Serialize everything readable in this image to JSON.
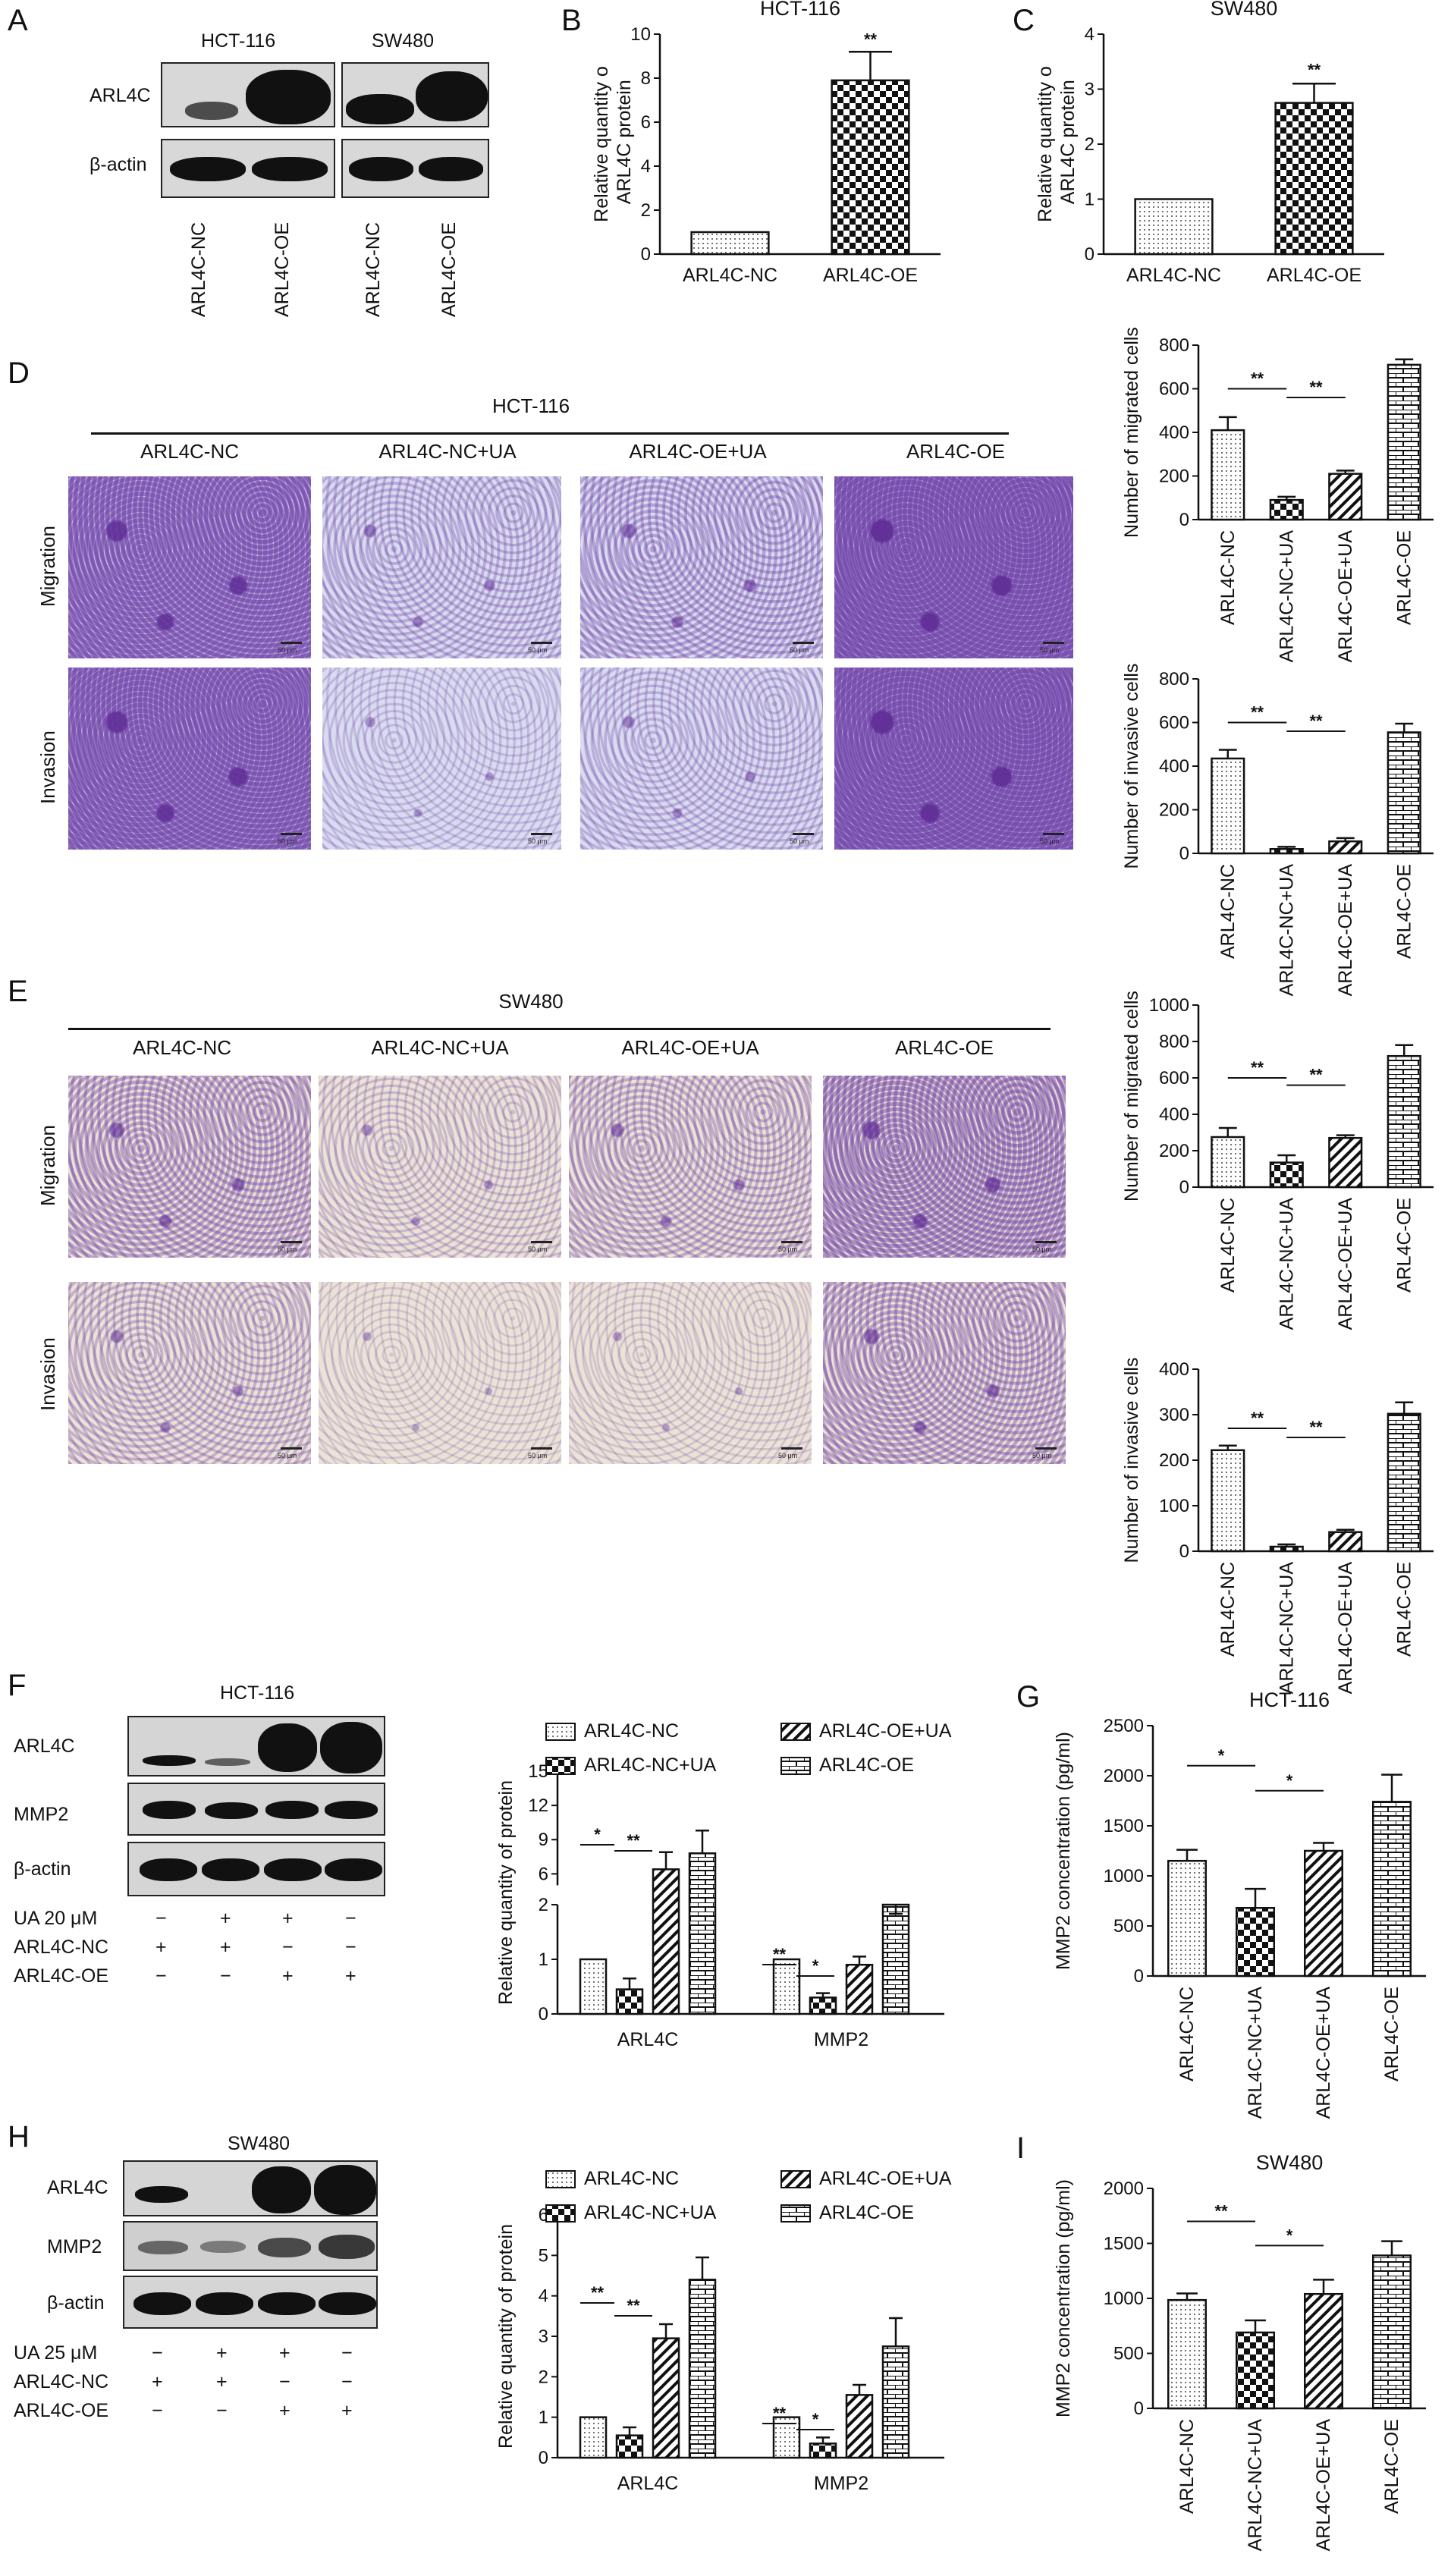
{
  "panels": {
    "A": {
      "letter": "A",
      "row_arl4c": "ARL4C",
      "row_actin": "β-actin",
      "group1": "HCT-116",
      "group2": "SW480",
      "lanes": [
        "ARL4C-NC",
        "ARL4C-OE",
        "ARL4C-NC",
        "ARL4C-OE"
      ]
    },
    "B": {
      "letter": "B",
      "title": "HCT-116",
      "ylabel": "Relative quantity of ARL4C protein",
      "sig": "**"
    },
    "C": {
      "letter": "C",
      "title": "SW480",
      "ylabel": "Relative quantity of ARL4C protein",
      "sig": "**"
    },
    "D": {
      "letter": "D",
      "cell_line": "HCT-116",
      "groups": [
        "ARL4C-NC",
        "ARL4C-NC+UA",
        "ARL4C-OE+UA",
        "ARL4C-OE"
      ],
      "rows": [
        "Migration",
        "Invasion"
      ],
      "scalebar": "50 μm"
    },
    "E": {
      "letter": "E",
      "cell_line": "SW480",
      "groups": [
        "ARL4C-NC",
        "ARL4C-NC+UA",
        "ARL4C-OE+UA",
        "ARL4C-OE"
      ],
      "rows": [
        "Migration",
        "Invasion"
      ],
      "scalebar": "50 μm"
    },
    "F": {
      "letter": "F",
      "cell_line": "HCT-116",
      "rows": [
        "ARL4C",
        "MMP2",
        "β-actin"
      ],
      "treat_labels": [
        "UA 20 μM",
        "ARL4C-NC",
        "ARL4C-OE"
      ],
      "treat_marks": [
        [
          "−",
          "+",
          "+",
          "−"
        ],
        [
          "+",
          "+",
          "−",
          "−"
        ],
        [
          "−",
          "−",
          "+",
          "+"
        ]
      ]
    },
    "G": {
      "letter": "G",
      "title": "HCT-116",
      "ylabel": "MMP2 concentration (pg/ml)"
    },
    "H": {
      "letter": "H",
      "cell_line": "SW480",
      "rows": [
        "ARL4C",
        "MMP2",
        "β-actin"
      ],
      "treat_labels": [
        "UA 25 μM",
        "ARL4C-NC",
        "ARL4C-OE"
      ],
      "treat_marks": [
        [
          "−",
          "+",
          "+",
          "−"
        ],
        [
          "+",
          "+",
          "−",
          "−"
        ],
        [
          "−",
          "−",
          "+",
          "+"
        ]
      ]
    },
    "I": {
      "letter": "I",
      "title": "SW480",
      "ylabel": "MMP2 concentration (pg/ml)"
    }
  },
  "legend": {
    "items": [
      "ARL4C-NC",
      "ARL4C-OE+UA",
      "ARL4C-NC+UA",
      "ARL4C-OE"
    ]
  },
  "chart_data": [
    {
      "id": "B",
      "type": "bar",
      "title": "HCT-116",
      "ylabel": "Relative quantity of ARL4C protein",
      "categories": [
        "ARL4C-NC",
        "ARL4C-OE"
      ],
      "values": [
        1,
        7.9
      ],
      "errors": [
        0,
        1.3
      ],
      "ylim": [
        0,
        10
      ],
      "yticks": [
        0,
        2,
        4,
        6,
        8,
        10
      ]
    },
    {
      "id": "C",
      "type": "bar",
      "title": "SW480",
      "ylabel": "Relative quantity of ARL4C protein",
      "categories": [
        "ARL4C-NC",
        "ARL4C-OE"
      ],
      "values": [
        1,
        2.75
      ],
      "errors": [
        0,
        0.35
      ],
      "ylim": [
        0,
        4
      ],
      "yticks": [
        0,
        1,
        2,
        3,
        4
      ]
    },
    {
      "id": "D-mig",
      "type": "bar",
      "ylabel": "Number of migrated cells",
      "categories": [
        "ARL4C-NC",
        "ARL4C-NC+UA",
        "ARL4C-OE+UA",
        "ARL4C-OE"
      ],
      "values": [
        410,
        90,
        210,
        710
      ],
      "errors": [
        60,
        15,
        15,
        25
      ],
      "ylim": [
        0,
        800
      ],
      "yticks": [
        0,
        200,
        400,
        600,
        800
      ]
    },
    {
      "id": "D-inv",
      "type": "bar",
      "ylabel": "Number of invasive cells",
      "categories": [
        "ARL4C-NC",
        "ARL4C-NC+UA",
        "ARL4C-OE+UA",
        "ARL4C-OE"
      ],
      "values": [
        435,
        20,
        55,
        555
      ],
      "errors": [
        40,
        10,
        15,
        40
      ],
      "ylim": [
        0,
        800
      ],
      "yticks": [
        0,
        200,
        400,
        600,
        800
      ]
    },
    {
      "id": "E-mig",
      "type": "bar",
      "ylabel": "Number of migrated cells",
      "categories": [
        "ARL4C-NC",
        "ARL4C-NC+UA",
        "ARL4C-OE+UA",
        "ARL4C-OE"
      ],
      "values": [
        275,
        135,
        270,
        720
      ],
      "errors": [
        50,
        40,
        15,
        60
      ],
      "ylim": [
        0,
        1000
      ],
      "yticks": [
        0,
        200,
        400,
        600,
        800,
        1000
      ]
    },
    {
      "id": "E-inv",
      "type": "bar",
      "ylabel": "Number of invasive cells",
      "categories": [
        "ARL4C-NC",
        "ARL4C-NC+UA",
        "ARL4C-OE+UA",
        "ARL4C-OE"
      ],
      "values": [
        222,
        10,
        42,
        302
      ],
      "errors": [
        10,
        5,
        5,
        25
      ],
      "ylim": [
        0,
        400
      ],
      "yticks": [
        0,
        100,
        200,
        300,
        400
      ]
    },
    {
      "id": "F-quant",
      "type": "bar",
      "ylabel": "Relative quantity of protein",
      "categories": [
        "ARL4C",
        "MMP2"
      ],
      "series": [
        {
          "name": "ARL4C-NC",
          "values": [
            1,
            1
          ],
          "errors": [
            0,
            0
          ]
        },
        {
          "name": "ARL4C-NC+UA",
          "values": [
            0.45,
            0.3
          ],
          "errors": [
            0.2,
            0.08
          ]
        },
        {
          "name": "ARL4C-OE+UA",
          "values": [
            6.4,
            0.9
          ],
          "errors": [
            1.5,
            0.15
          ]
        },
        {
          "name": "ARL4C-OE",
          "values": [
            7.8,
            2.0
          ],
          "errors": [
            2.0,
            0.5
          ]
        }
      ],
      "axis_break": [
        2,
        5
      ],
      "yticks_low": [
        0,
        1,
        2
      ],
      "yticks_high": [
        6,
        9,
        12,
        15
      ]
    },
    {
      "id": "G",
      "type": "bar",
      "title": "HCT-116",
      "ylabel": "MMP2 concentration (pg/ml)",
      "categories": [
        "ARL4C-NC",
        "ARL4C-NC+UA",
        "ARL4C-OE+UA",
        "ARL4C-OE"
      ],
      "values": [
        1150,
        680,
        1250,
        1740
      ],
      "errors": [
        110,
        190,
        80,
        270
      ],
      "ylim": [
        0,
        2500
      ],
      "yticks": [
        0,
        500,
        1000,
        1500,
        2000,
        2500
      ]
    },
    {
      "id": "H-quant",
      "type": "bar",
      "ylabel": "Relative quantity of protein",
      "categories": [
        "ARL4C",
        "MMP2"
      ],
      "series": [
        {
          "name": "ARL4C-NC",
          "values": [
            1,
            1
          ],
          "errors": [
            0,
            0
          ]
        },
        {
          "name": "ARL4C-NC+UA",
          "values": [
            0.55,
            0.35
          ],
          "errors": [
            0.2,
            0.15
          ]
        },
        {
          "name": "ARL4C-OE+UA",
          "values": [
            2.95,
            1.55
          ],
          "errors": [
            0.35,
            0.25
          ]
        },
        {
          "name": "ARL4C-OE",
          "values": [
            4.4,
            2.75
          ],
          "errors": [
            0.55,
            0.7
          ]
        }
      ],
      "ylim": [
        0,
        6
      ],
      "yticks": [
        0,
        1,
        2,
        3,
        4,
        5,
        6
      ]
    },
    {
      "id": "I",
      "type": "bar",
      "title": "SW480",
      "ylabel": "MMP2 concentration (pg/ml)",
      "categories": [
        "ARL4C-NC",
        "ARL4C-NC+UA",
        "ARL4C-OE+UA",
        "ARL4C-OE"
      ],
      "values": [
        985,
        690,
        1040,
        1390
      ],
      "errors": [
        60,
        110,
        130,
        130
      ],
      "ylim": [
        0,
        2000
      ],
      "yticks": [
        0,
        500,
        1000,
        1500,
        2000
      ]
    }
  ]
}
